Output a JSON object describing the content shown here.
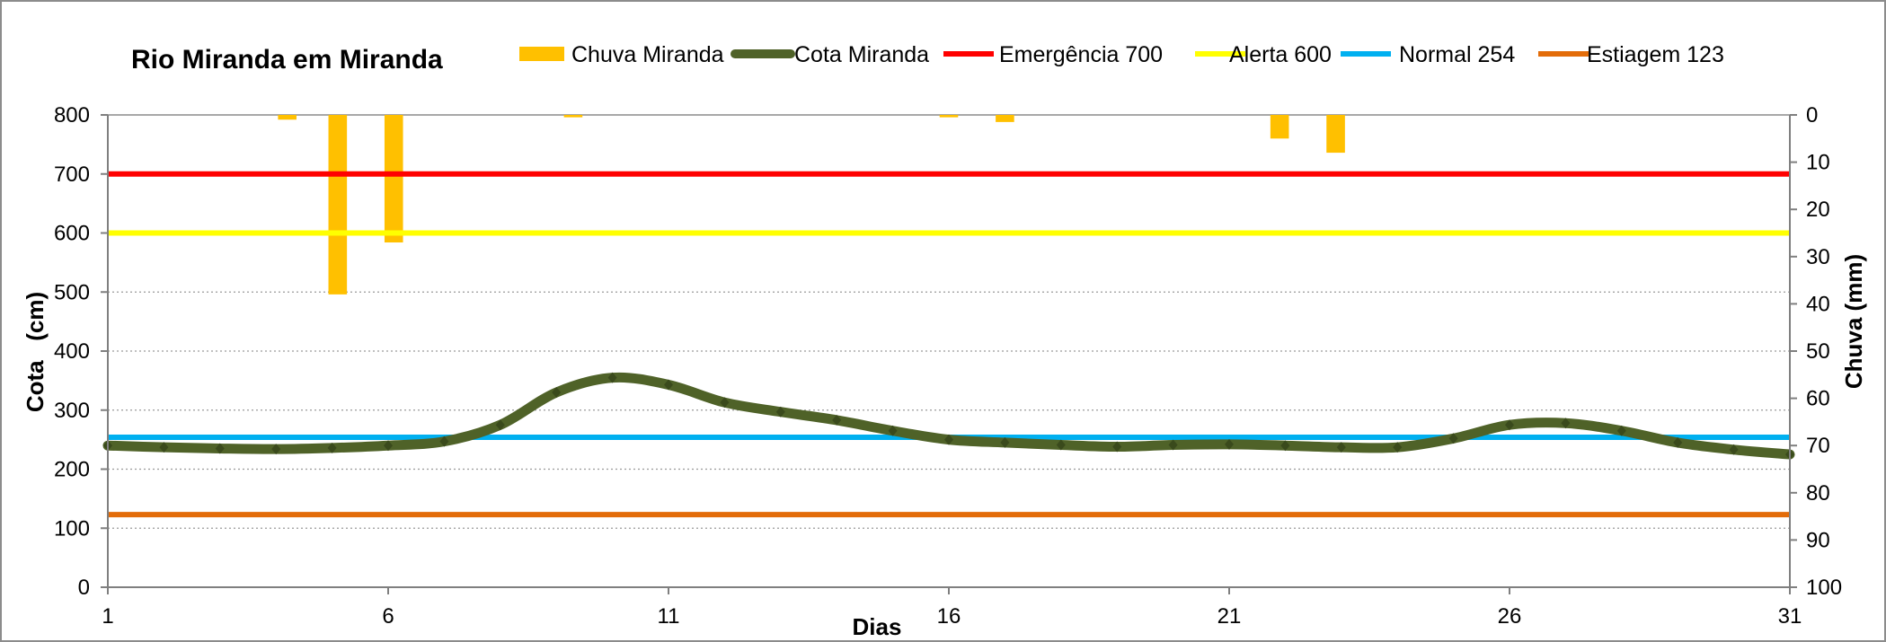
{
  "chart_data": {
    "type": "line",
    "title": "Rio Miranda em Miranda",
    "xlabel": "Dias",
    "ylabel": "Cota   (cm)",
    "y2label": "Chuva (mm)",
    "xlim": [
      1,
      31
    ],
    "x_ticks": [
      1,
      6,
      11,
      16,
      21,
      26,
      31
    ],
    "ylim": [
      0,
      800
    ],
    "y_ticks": [
      0,
      100,
      200,
      300,
      400,
      500,
      600,
      700,
      800
    ],
    "y2lim": [
      0,
      100
    ],
    "y2_reversed": true,
    "y2_ticks": [
      0,
      10,
      20,
      30,
      40,
      50,
      60,
      70,
      80,
      90,
      100
    ],
    "grid": "horizontal dotted",
    "legend_position": "top",
    "rain": {
      "name": "Chuva Miranda",
      "color": "#FFC000",
      "x": [
        4.2,
        5.1,
        6.1,
        9.3,
        16.0,
        17.0,
        21.9,
        22.9
      ],
      "values": [
        1,
        38,
        27,
        0.5,
        0.5,
        1.5,
        5,
        8
      ]
    },
    "series": [
      {
        "name": "Cota Miranda",
        "color": "#4F6228",
        "x": [
          1,
          2,
          3,
          4,
          5,
          6,
          7,
          8,
          9,
          10,
          11,
          12,
          13,
          14,
          15,
          16,
          17,
          18,
          19,
          20,
          21,
          22,
          23,
          24,
          25,
          26,
          27,
          28,
          29,
          30,
          31
        ],
        "values": [
          240,
          237,
          235,
          234,
          236,
          240,
          247,
          275,
          330,
          355,
          343,
          313,
          297,
          283,
          265,
          250,
          245,
          241,
          238,
          241,
          242,
          240,
          237,
          237,
          252,
          275,
          278,
          265,
          245,
          233,
          225
        ]
      }
    ],
    "reference_lines": [
      {
        "name": "Emergência 700",
        "value": 700,
        "color": "#FF0000"
      },
      {
        "name": "Alerta 600",
        "value": 600,
        "color": "#FFFF00"
      },
      {
        "name": "Normal  254",
        "value": 254,
        "color": "#00B0F0"
      },
      {
        "name": "Estiagem 123",
        "value": 123,
        "color": "#E36C09"
      }
    ]
  }
}
